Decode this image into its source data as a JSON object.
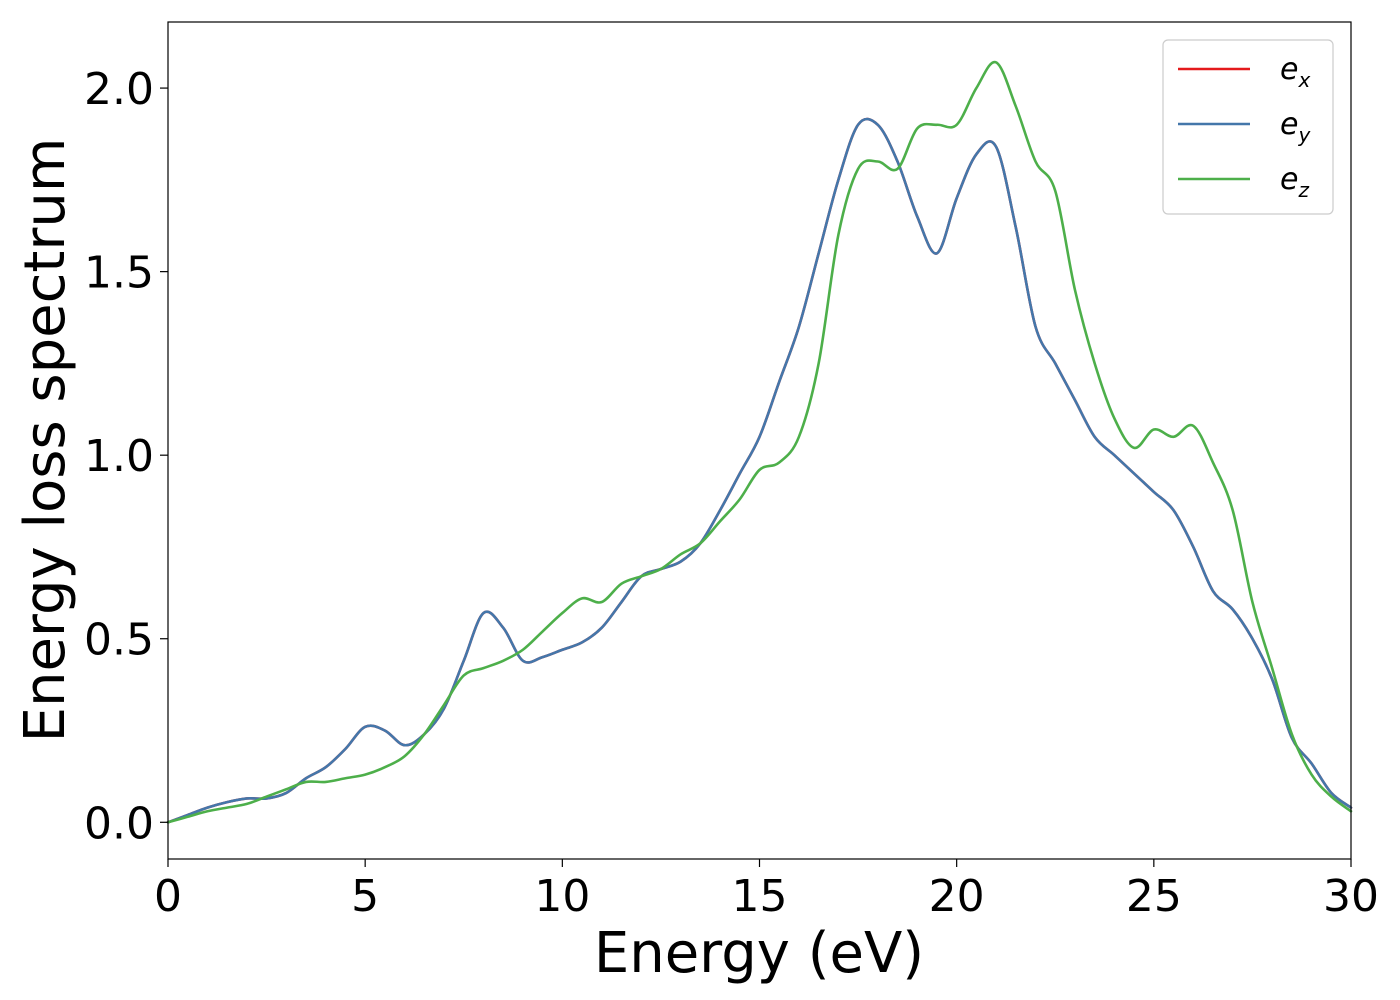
{
  "chart_data": {
    "type": "line",
    "title": "",
    "xlabel": "Energy (eV)",
    "ylabel": "Energy loss spectrum",
    "xlim": [
      0,
      30
    ],
    "ylim": [
      -0.1,
      2.18
    ],
    "xticks": [
      0,
      5,
      10,
      15,
      20,
      25,
      30
    ],
    "xtick_labels": [
      "0",
      "5",
      "10",
      "15",
      "20",
      "25",
      "30"
    ],
    "yticks": [
      0.0,
      0.5,
      1.0,
      1.5,
      2.0
    ],
    "ytick_labels": [
      "0.0",
      "0.5",
      "1.0",
      "1.5",
      "2.0"
    ],
    "grid": false,
    "legend_position": "top-right",
    "series": [
      {
        "name": "e_x",
        "label_base": "e",
        "label_sub": "x",
        "color": "#e41a1c",
        "x": [
          0,
          0.5,
          1,
          1.5,
          2,
          2.5,
          3,
          3.5,
          4,
          4.5,
          5,
          5.5,
          6,
          6.5,
          7,
          7.5,
          8,
          8.5,
          9,
          9.5,
          10,
          10.5,
          11,
          11.5,
          12,
          12.5,
          13,
          13.5,
          14,
          14.5,
          15,
          15.5,
          16,
          16.5,
          17,
          17.5,
          18,
          18.5,
          19,
          19.5,
          20,
          20.5,
          21,
          21.5,
          22,
          22.5,
          23,
          23.5,
          24,
          24.5,
          25,
          25.5,
          26,
          26.5,
          27,
          27.5,
          28,
          28.5,
          29,
          29.5,
          30
        ],
        "y": [
          0,
          0.02,
          0.04,
          0.055,
          0.065,
          0.065,
          0.08,
          0.12,
          0.15,
          0.2,
          0.26,
          0.25,
          0.21,
          0.24,
          0.31,
          0.44,
          0.57,
          0.53,
          0.44,
          0.45,
          0.47,
          0.49,
          0.53,
          0.6,
          0.67,
          0.69,
          0.71,
          0.76,
          0.85,
          0.95,
          1.05,
          1.2,
          1.35,
          1.55,
          1.75,
          1.9,
          1.9,
          1.8,
          1.65,
          1.55,
          1.7,
          1.82,
          1.84,
          1.62,
          1.35,
          1.25,
          1.15,
          1.05,
          1.0,
          0.95,
          0.9,
          0.85,
          0.75,
          0.63,
          0.58,
          0.5,
          0.39,
          0.23,
          0.16,
          0.08,
          0.04
        ]
      },
      {
        "name": "e_y",
        "label_base": "e",
        "label_sub": "y",
        "color": "#4477aa",
        "x": [
          0,
          0.5,
          1,
          1.5,
          2,
          2.5,
          3,
          3.5,
          4,
          4.5,
          5,
          5.5,
          6,
          6.5,
          7,
          7.5,
          8,
          8.5,
          9,
          9.5,
          10,
          10.5,
          11,
          11.5,
          12,
          12.5,
          13,
          13.5,
          14,
          14.5,
          15,
          15.5,
          16,
          16.5,
          17,
          17.5,
          18,
          18.5,
          19,
          19.5,
          20,
          20.5,
          21,
          21.5,
          22,
          22.5,
          23,
          23.5,
          24,
          24.5,
          25,
          25.5,
          26,
          26.5,
          27,
          27.5,
          28,
          28.5,
          29,
          29.5,
          30
        ],
        "y": [
          0,
          0.02,
          0.04,
          0.055,
          0.065,
          0.065,
          0.08,
          0.12,
          0.15,
          0.2,
          0.26,
          0.25,
          0.21,
          0.24,
          0.31,
          0.44,
          0.57,
          0.53,
          0.44,
          0.45,
          0.47,
          0.49,
          0.53,
          0.6,
          0.67,
          0.69,
          0.71,
          0.76,
          0.85,
          0.95,
          1.05,
          1.2,
          1.35,
          1.55,
          1.75,
          1.9,
          1.9,
          1.8,
          1.65,
          1.55,
          1.7,
          1.82,
          1.84,
          1.62,
          1.35,
          1.25,
          1.15,
          1.05,
          1.0,
          0.95,
          0.9,
          0.85,
          0.75,
          0.63,
          0.58,
          0.5,
          0.39,
          0.23,
          0.16,
          0.08,
          0.04
        ]
      },
      {
        "name": "e_z",
        "label_base": "e",
        "label_sub": "z",
        "color": "#4daf4a",
        "x": [
          0,
          0.5,
          1,
          1.5,
          2,
          2.5,
          3,
          3.5,
          4,
          4.5,
          5,
          5.5,
          6,
          6.5,
          7,
          7.5,
          8,
          8.5,
          9,
          9.5,
          10,
          10.5,
          11,
          11.5,
          12,
          12.5,
          13,
          13.5,
          14,
          14.5,
          15,
          15.5,
          16,
          16.5,
          17,
          17.5,
          18,
          18.5,
          19,
          19.5,
          20,
          20.5,
          21,
          21.5,
          22,
          22.5,
          23,
          23.5,
          24,
          24.5,
          25,
          25.5,
          26,
          26.5,
          27,
          27.5,
          28,
          28.5,
          29,
          29.5,
          30
        ],
        "y": [
          0,
          0.015,
          0.03,
          0.04,
          0.05,
          0.07,
          0.09,
          0.11,
          0.11,
          0.12,
          0.13,
          0.15,
          0.18,
          0.24,
          0.32,
          0.4,
          0.42,
          0.44,
          0.47,
          0.52,
          0.57,
          0.61,
          0.6,
          0.65,
          0.67,
          0.69,
          0.73,
          0.76,
          0.82,
          0.88,
          0.96,
          0.98,
          1.05,
          1.25,
          1.6,
          1.78,
          1.8,
          1.78,
          1.89,
          1.9,
          1.9,
          2.0,
          2.07,
          1.95,
          1.8,
          1.72,
          1.45,
          1.25,
          1.1,
          1.02,
          1.07,
          1.05,
          1.08,
          0.98,
          0.85,
          0.6,
          0.42,
          0.24,
          0.13,
          0.07,
          0.03
        ]
      }
    ]
  }
}
